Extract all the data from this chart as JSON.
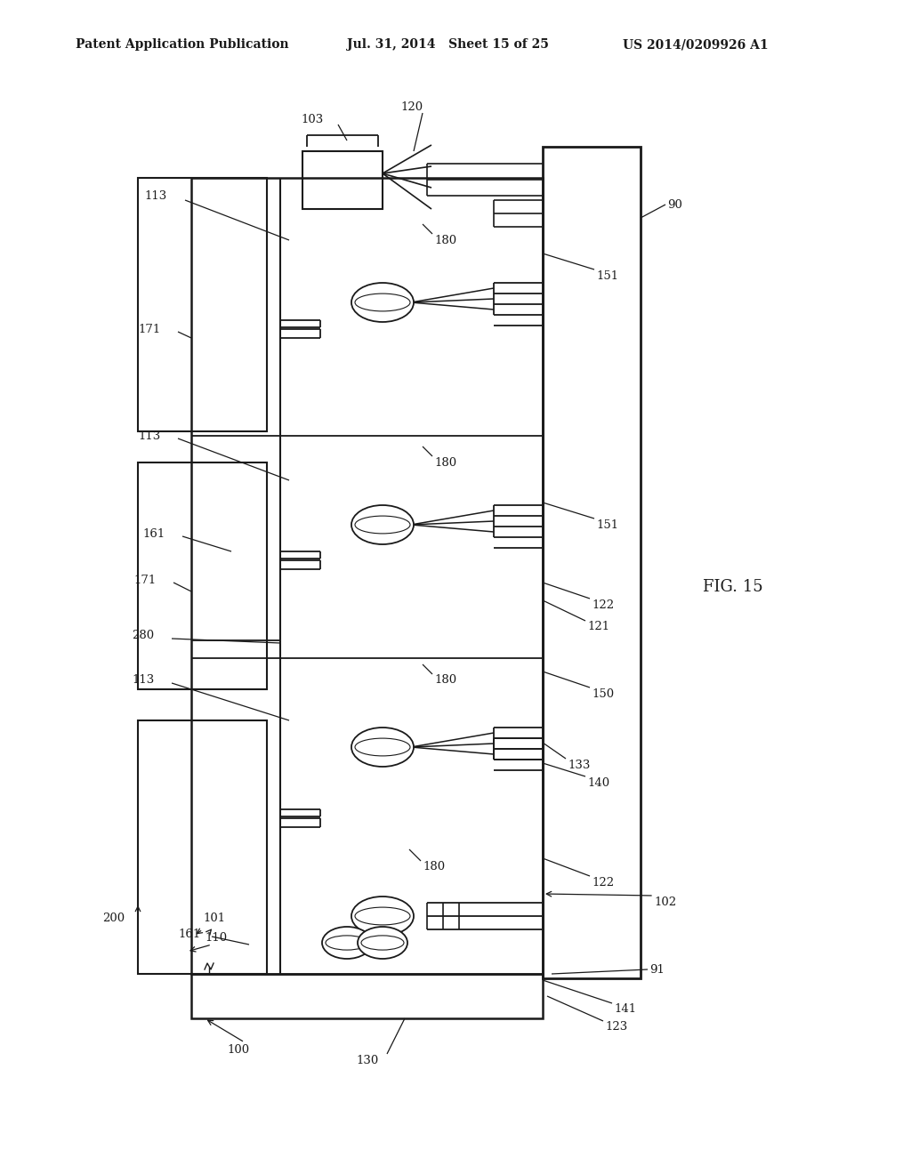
{
  "bg_color": "#ffffff",
  "line_color": "#1a1a1a",
  "header_text": "Patent Application Publication",
  "header_date": "Jul. 31, 2014   Sheet 15 of 25",
  "header_patent": "US 2014/0209926 A1",
  "fig_label": "FIG. 15"
}
